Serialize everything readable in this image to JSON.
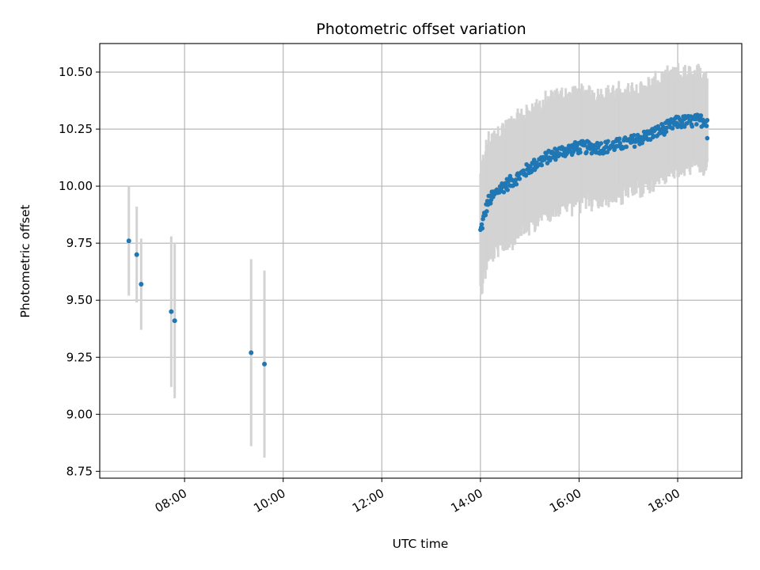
{
  "chart_data": {
    "type": "scatter",
    "title": "Photometric offset variation",
    "xlabel": "UTC time",
    "ylabel": "Photometric offset",
    "x_unit": "hours UTC",
    "xlim": [
      6.28,
      19.3
    ],
    "ylim": [
      8.72,
      10.625
    ],
    "x_ticks": [
      {
        "value": 8,
        "label": "08:00"
      },
      {
        "value": 10,
        "label": "10:00"
      },
      {
        "value": 12,
        "label": "12:00"
      },
      {
        "value": 14,
        "label": "14:00"
      },
      {
        "value": 16,
        "label": "16:00"
      },
      {
        "value": 18,
        "label": "18:00"
      }
    ],
    "y_ticks": [
      {
        "value": 8.75,
        "label": "8.75"
      },
      {
        "value": 9.0,
        "label": "9.00"
      },
      {
        "value": 9.25,
        "label": "9.25"
      },
      {
        "value": 9.5,
        "label": "9.50"
      },
      {
        "value": 9.75,
        "label": "9.75"
      },
      {
        "value": 10.0,
        "label": "10.00"
      },
      {
        "value": 10.25,
        "label": "10.25"
      },
      {
        "value": 10.5,
        "label": "10.50"
      }
    ],
    "grid": true,
    "colors": {
      "points": "#1f77b4",
      "error_bars": "#d3d3d3"
    },
    "points": [
      {
        "x": 6.87,
        "y": 9.76,
        "err": 0.24
      },
      {
        "x": 7.03,
        "y": 9.7,
        "err": 0.21
      },
      {
        "x": 7.12,
        "y": 9.57,
        "err": 0.2
      },
      {
        "x": 7.73,
        "y": 9.45,
        "err": 0.33
      },
      {
        "x": 7.8,
        "y": 9.41,
        "err": 0.34
      },
      {
        "x": 9.35,
        "y": 9.27,
        "err": 0.41
      },
      {
        "x": 9.62,
        "y": 9.22,
        "err": 0.41
      }
    ],
    "dense_segment": {
      "description_type": "continuous sampling",
      "x_start": 14.0,
      "x_end": 18.6,
      "n_points": 360,
      "trend": [
        {
          "x": 14.0,
          "y": 9.8
        },
        {
          "x": 14.15,
          "y": 9.93
        },
        {
          "x": 14.4,
          "y": 9.99
        },
        {
          "x": 14.7,
          "y": 10.03
        },
        {
          "x": 15.0,
          "y": 10.08
        },
        {
          "x": 15.3,
          "y": 10.12
        },
        {
          "x": 15.6,
          "y": 10.15
        },
        {
          "x": 16.0,
          "y": 10.17
        },
        {
          "x": 16.5,
          "y": 10.17
        },
        {
          "x": 17.0,
          "y": 10.19
        },
        {
          "x": 17.5,
          "y": 10.23
        },
        {
          "x": 18.0,
          "y": 10.28
        },
        {
          "x": 18.6,
          "y": 10.29
        }
      ],
      "err_start": 0.26,
      "err_end": 0.2,
      "last_point": {
        "x": 18.6,
        "y": 10.21
      }
    }
  }
}
